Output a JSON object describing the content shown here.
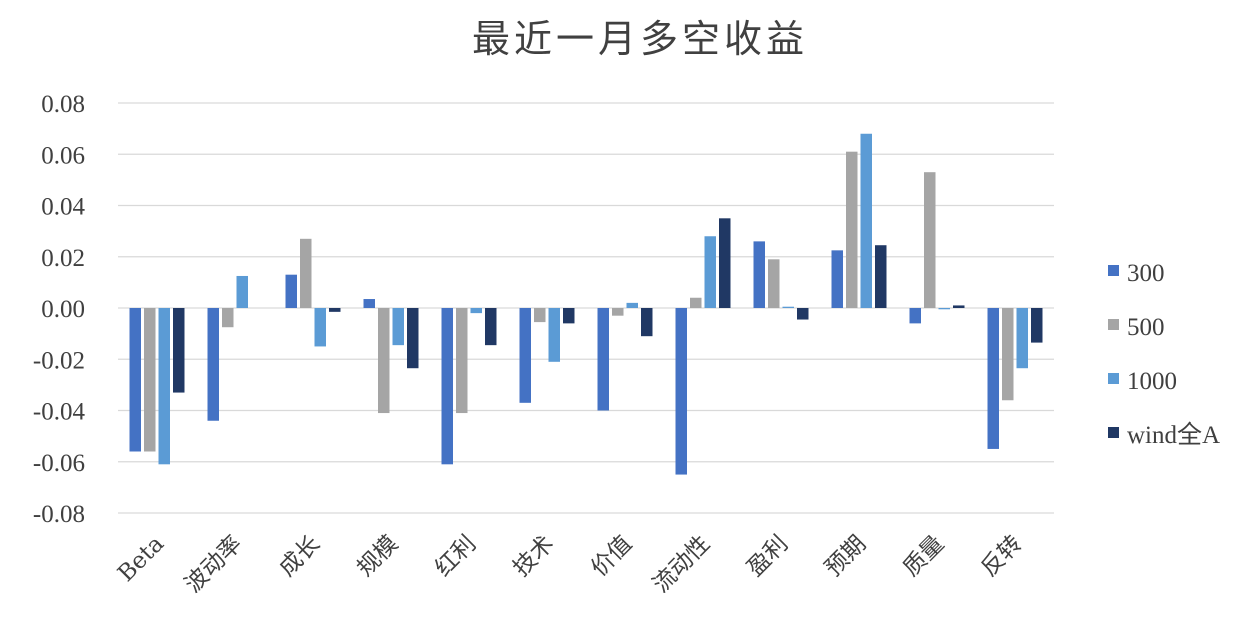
{
  "chart_data": {
    "type": "bar",
    "title": "最近一月多空收益",
    "categories": [
      "Beta",
      "波动率",
      "成长",
      "规模",
      "红利",
      "技术",
      "价值",
      "流动性",
      "盈利",
      "预期",
      "质量",
      "反转"
    ],
    "series": [
      {
        "name": "300",
        "color": "#4472C4",
        "values": [
          -0.056,
          -0.044,
          0.013,
          0.0035,
          -0.061,
          -0.037,
          -0.04,
          -0.065,
          0.026,
          0.0225,
          -0.006,
          -0.055
        ]
      },
      {
        "name": "500",
        "color": "#A5A5A5",
        "values": [
          -0.056,
          -0.0075,
          0.027,
          -0.041,
          -0.041,
          -0.0055,
          -0.003,
          0.004,
          0.019,
          0.061,
          0.053,
          -0.036
        ]
      },
      {
        "name": "1000",
        "color": "#5B9BD5",
        "values": [
          -0.061,
          0.0125,
          -0.015,
          -0.0145,
          -0.002,
          -0.021,
          0.002,
          0.028,
          0.0005,
          0.068,
          -0.0005,
          -0.0235
        ]
      },
      {
        "name": "wind全A",
        "color": "#203864",
        "values": [
          -0.033,
          0.0,
          -0.0015,
          -0.0235,
          -0.0145,
          -0.006,
          -0.011,
          0.035,
          -0.0045,
          0.0245,
          0.001,
          -0.0135
        ]
      }
    ],
    "ylim": [
      -0.08,
      0.08
    ],
    "yticks": [
      "0.08",
      "0.06",
      "0.04",
      "0.02",
      "0.00",
      "-0.02",
      "-0.04",
      "-0.06",
      "-0.08"
    ],
    "ytick_values": [
      0.08,
      0.06,
      0.04,
      0.02,
      0.0,
      -0.02,
      -0.04,
      -0.06,
      -0.08
    ],
    "grid": true,
    "legend_position": "right"
  }
}
